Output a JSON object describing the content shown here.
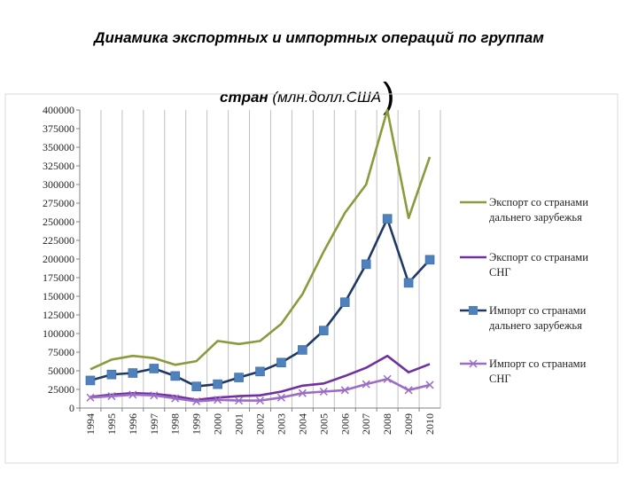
{
  "title": {
    "line1": "Динамика экспортных и импортных операций по группам",
    "line2_bold": "стран",
    "line2_rest": " (млн.долл.США",
    "line2_paren": ")"
  },
  "chart_data": {
    "type": "line",
    "x": [
      "1994",
      "1995",
      "1996",
      "1997",
      "1998",
      "1999",
      "2000",
      "2001",
      "2002",
      "2003",
      "2004",
      "2005",
      "2006",
      "2007",
      "2008",
      "2009",
      "2010"
    ],
    "ylim": [
      0,
      400000
    ],
    "yticks": [
      "0",
      "25000",
      "50000",
      "75000",
      "100000",
      "125000",
      "150000",
      "175000",
      "200000",
      "225000",
      "250000",
      "275000",
      "300000",
      "325000",
      "350000",
      "375000",
      "400000"
    ],
    "legend_position": "right",
    "series": [
      {
        "name": "Экспорт со странами дальнего зарубежья",
        "legend_lines": [
          "Экспорт со странами",
          "дальнего зарубежья"
        ],
        "color": "#8a9a3c",
        "marker": "none",
        "values": [
          52000,
          65000,
          70000,
          67000,
          58000,
          63000,
          90000,
          86000,
          90000,
          113000,
          153000,
          210000,
          262000,
          300000,
          400000,
          255000,
          337000
        ]
      },
      {
        "name": "Экспорт со странами СНГ",
        "legend_lines": [
          "Экспорт со странами",
          "СНГ"
        ],
        "color": "#7030a0",
        "marker": "none",
        "values": [
          15000,
          18000,
          20000,
          19000,
          16000,
          11000,
          14000,
          16000,
          17000,
          22000,
          30000,
          33000,
          43000,
          54000,
          70000,
          48000,
          59000
        ]
      },
      {
        "name": "Импорт со странами дальнего зарубежья",
        "legend_lines": [
          "Импорт со странами",
          "дальнего зарубежья"
        ],
        "color": "#1f3864",
        "marker": "square",
        "marker_color": "#4f81bd",
        "values": [
          37000,
          45000,
          47000,
          53000,
          43000,
          29000,
          32000,
          41000,
          49000,
          61000,
          78000,
          104000,
          142000,
          193000,
          254000,
          168000,
          199000
        ]
      },
      {
        "name": "Импорт со странами СНГ",
        "legend_lines": [
          "Импорт со странами",
          "СНГ"
        ],
        "color": "#9b6dc6",
        "marker": "x",
        "values": [
          14000,
          16000,
          18000,
          17000,
          13000,
          9000,
          11000,
          10000,
          10000,
          14000,
          20000,
          22000,
          24000,
          32000,
          39000,
          24000,
          31000
        ]
      }
    ]
  }
}
